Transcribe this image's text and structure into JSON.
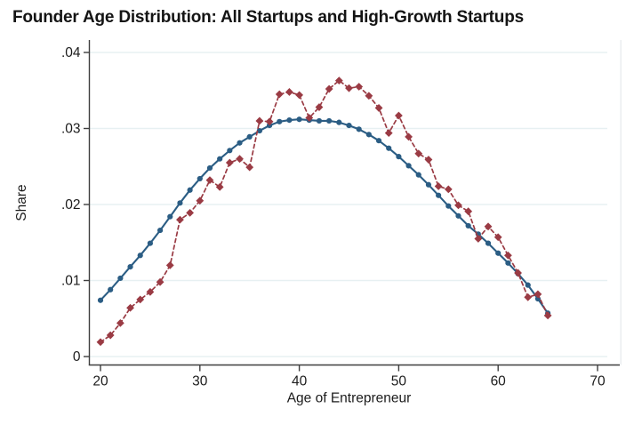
{
  "page": {
    "background": "#ffffff"
  },
  "header": {
    "title": "Founder Age Distribution: All Startups and High-Growth Startups"
  },
  "chart_data": {
    "type": "line",
    "title": "Founder Age Distribution: All Startups and High-Growth Startups",
    "xlabel": "Age of Entrepreneur",
    "ylabel": "Share",
    "x_tick_values": [
      20,
      30,
      40,
      50,
      60,
      70
    ],
    "x_tick_labels": [
      "20",
      "30",
      "40",
      "50",
      "60",
      "70"
    ],
    "y_tick_values": [
      0,
      0.01,
      0.02,
      0.03,
      0.04
    ],
    "y_tick_labels": [
      "0",
      ".01",
      ".02",
      ".03",
      ".04"
    ],
    "xlim": [
      18.9,
      72.3
    ],
    "ylim": [
      0,
      0.0415
    ],
    "grid": "horizontal",
    "legend": "none",
    "axis_color": "#3f3f3f",
    "grid_color": "#e7f0f2",
    "frame_right_color": "#e9edef",
    "label_color": "#1c1c1c",
    "x": [
      20,
      21,
      22,
      23,
      24,
      25,
      26,
      27,
      28,
      29,
      30,
      31,
      32,
      33,
      34,
      35,
      36,
      37,
      38,
      39,
      40,
      41,
      42,
      43,
      44,
      45,
      46,
      47,
      48,
      49,
      50,
      51,
      52,
      53,
      54,
      55,
      56,
      57,
      58,
      59,
      60,
      61,
      62,
      63,
      64,
      65
    ],
    "series": [
      {
        "name": "All Startups",
        "line_style": "solid",
        "marker": "circle",
        "color": "#2b5d84",
        "values": [
          0.0074,
          0.0088,
          0.0103,
          0.0118,
          0.0133,
          0.0149,
          0.0166,
          0.0184,
          0.0202,
          0.0219,
          0.0234,
          0.0248,
          0.026,
          0.0271,
          0.0281,
          0.0289,
          0.0297,
          0.0304,
          0.0309,
          0.0311,
          0.0312,
          0.0311,
          0.031,
          0.031,
          0.0308,
          0.0304,
          0.0299,
          0.0292,
          0.0284,
          0.0274,
          0.0263,
          0.0251,
          0.0239,
          0.0226,
          0.0212,
          0.0198,
          0.0185,
          0.0172,
          0.0161,
          0.0149,
          0.0136,
          0.0123,
          0.0109,
          0.0094,
          0.0076,
          0.0057
        ]
      },
      {
        "name": "High-Growth Startups",
        "line_style": "dashed",
        "marker": "diamond",
        "color": "#9a3b44",
        "values": [
          0.0019,
          0.0028,
          0.0044,
          0.0064,
          0.0075,
          0.0085,
          0.0098,
          0.012,
          0.018,
          0.0189,
          0.0205,
          0.0232,
          0.0223,
          0.0255,
          0.026,
          0.0249,
          0.031,
          0.0309,
          0.0345,
          0.0348,
          0.0344,
          0.0314,
          0.0328,
          0.0352,
          0.0363,
          0.0353,
          0.0355,
          0.0343,
          0.0327,
          0.0294,
          0.0317,
          0.0289,
          0.0267,
          0.0259,
          0.0224,
          0.022,
          0.0199,
          0.0191,
          0.0155,
          0.0171,
          0.0157,
          0.0133,
          0.011,
          0.0078,
          0.0082,
          0.0054
        ]
      }
    ]
  }
}
